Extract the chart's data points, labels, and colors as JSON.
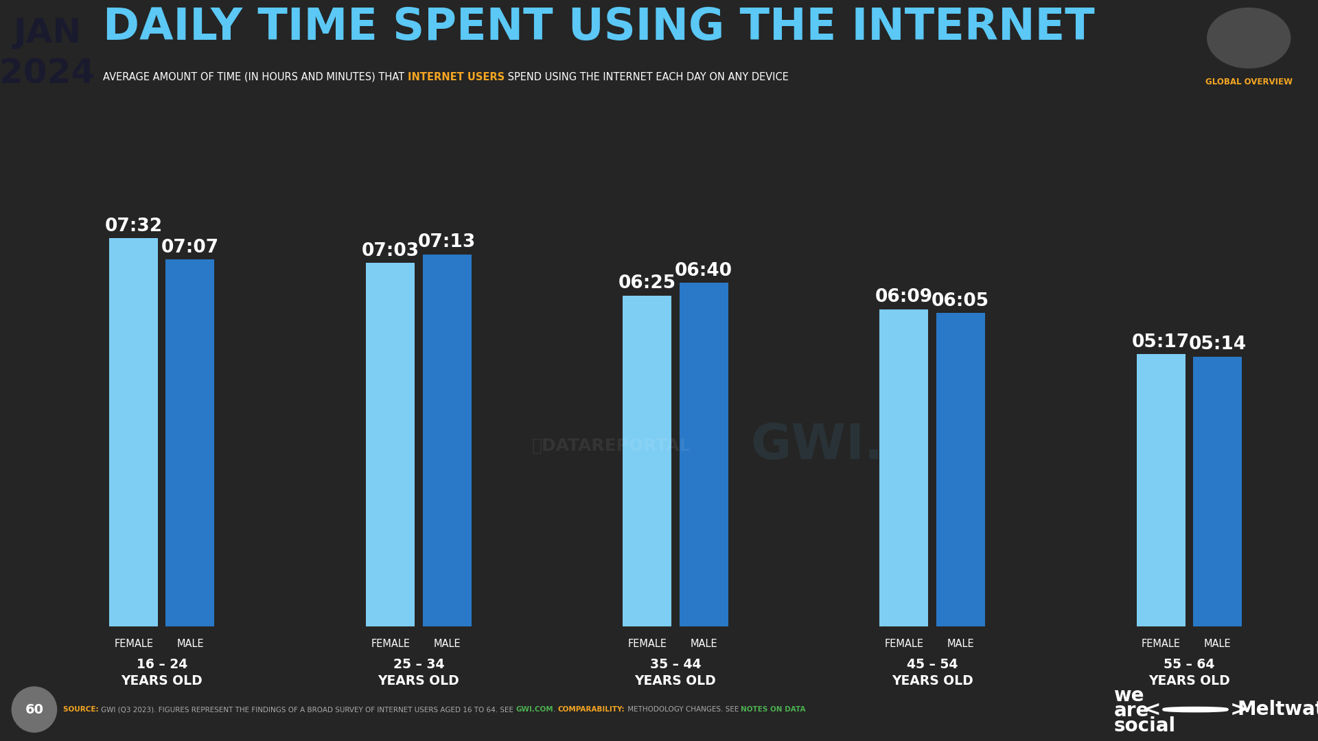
{
  "title": "DAILY TIME SPENT USING THE INTERNET",
  "subtitle_plain1": "AVERAGE AMOUNT OF TIME (IN HOURS AND MINUTES) THAT ",
  "subtitle_highlight": "INTERNET USERS",
  "subtitle_plain2": " SPEND USING THE INTERNET EACH DAY ON ANY DEVICE",
  "month": "JAN",
  "year": "2024",
  "page_number": "60",
  "global_overview": "GLOBAL OVERVIEW",
  "background_color": "#252525",
  "blue_accent": "#5bc8f5",
  "orange_accent": "#f5a623",
  "green_accent": "#4CAF50",
  "bar_female_color": "#7ecef4",
  "bar_male_color": "#2979c8",
  "groups": [
    {
      "age_range": "16 – 24\nYEARS OLD",
      "female_value": 7.533,
      "male_value": 7.117,
      "female_display": "07:32",
      "male_display": "07:07"
    },
    {
      "age_range": "25 – 34\nYEARS OLD",
      "female_value": 7.05,
      "male_value": 7.217,
      "female_display": "07:03",
      "male_display": "07:13"
    },
    {
      "age_range": "35 – 44\nYEARS OLD",
      "female_value": 6.417,
      "male_value": 6.667,
      "female_display": "06:25",
      "male_display": "06:40"
    },
    {
      "age_range": "45 – 54\nYEARS OLD",
      "female_value": 6.15,
      "male_value": 6.083,
      "female_display": "06:09",
      "male_display": "06:05"
    },
    {
      "age_range": "55 – 64\nYEARS OLD",
      "female_value": 5.283,
      "male_value": 5.233,
      "female_display": "05:17",
      "male_display": "05:14"
    }
  ]
}
